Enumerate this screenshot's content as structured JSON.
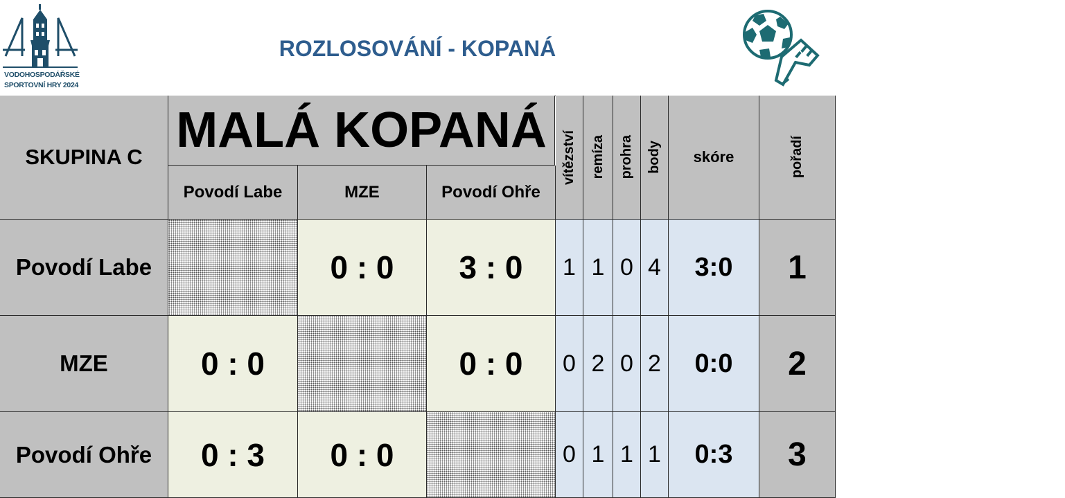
{
  "header": {
    "title": "ROZLOSOVÁNÍ - KOPANÁ",
    "logo_line1": "VODOHOSPODÁŘSKÉ",
    "logo_line2": "SPORTOVNÍ HRY 2024",
    "logo_icon": "tower-logo-icon",
    "right_icon": "football-boot-icon",
    "accent_color": "#2e5d8e"
  },
  "table": {
    "group_label": "SKUPINA C",
    "sport_title": "MALÁ KOPANÁ",
    "teams_columns": [
      "Povodí Labe",
      "MZE",
      "Povodí Ohře"
    ],
    "stat_headers": {
      "wins": "vítězství",
      "draws": "remíza",
      "losses": "prohra",
      "points": "body",
      "score": "skóre",
      "rank": "pořadí"
    },
    "rows": [
      {
        "team": "Povodí Labe",
        "results": [
          "",
          "0 : 0",
          "3 : 0"
        ],
        "wins": "1",
        "draws": "1",
        "losses": "0",
        "points": "4",
        "score": "3:0",
        "rank": "1"
      },
      {
        "team": "MZE",
        "results": [
          "0 : 0",
          "",
          "0 : 0"
        ],
        "wins": "0",
        "draws": "2",
        "losses": "0",
        "points": "2",
        "score": "0:0",
        "rank": "2"
      },
      {
        "team": "Povodí Ohře",
        "results": [
          "0 : 3",
          "0 : 0",
          ""
        ],
        "wins": "0",
        "draws": "1",
        "losses": "1",
        "points": "1",
        "score": "0:3",
        "rank": "3"
      }
    ]
  }
}
